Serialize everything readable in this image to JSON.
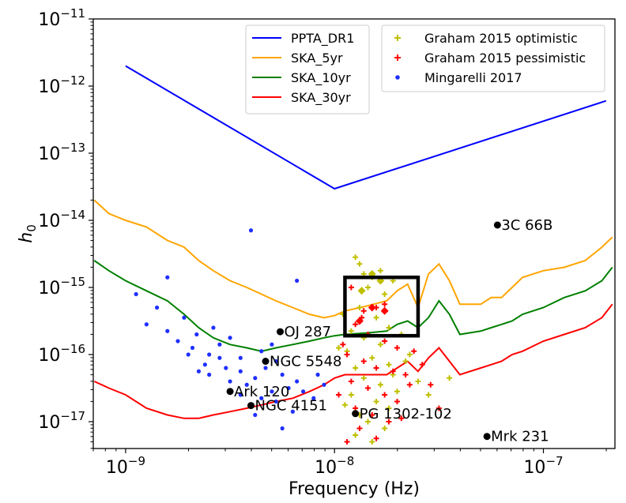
{
  "chart_data": {
    "type": "line",
    "xscale": "log",
    "yscale": "log",
    "xlabel": "Frequency (Hz)",
    "ylabel_main": "h",
    "ylabel_sub": "0",
    "xlim": [
      7e-10,
      2.2e-07
    ],
    "ylim_exp": [
      -17.4,
      -11
    ],
    "x_ticks": [
      {
        "exp": -9,
        "base": "10",
        "sup": "−9"
      },
      {
        "exp": -8,
        "base": "10",
        "sup": "−8"
      },
      {
        "exp": -7,
        "base": "10",
        "sup": "−7"
      }
    ],
    "y_ticks": [
      {
        "exp": -11,
        "base": "10",
        "sup": "−11"
      },
      {
        "exp": -12,
        "base": "10",
        "sup": "−12"
      },
      {
        "exp": -13,
        "base": "10",
        "sup": "−13"
      },
      {
        "exp": -14,
        "base": "10",
        "sup": "−14"
      },
      {
        "exp": -15,
        "base": "10",
        "sup": "−15"
      },
      {
        "exp": -16,
        "base": "10",
        "sup": "−16"
      },
      {
        "exp": -17,
        "base": "10",
        "sup": "−17"
      }
    ],
    "colors": {
      "ppta": "#0000ff",
      "ska5": "#ffa500",
      "ska10": "#008000",
      "ska30": "#ff0000",
      "optimistic": "#bfbf00",
      "pessimistic": "#ff0000",
      "mingarelli": "#1f2fff"
    },
    "series": [
      {
        "name": "PPTA_DR1",
        "color": "#0000ff",
        "logx": [
          -9.0,
          -8.0,
          -6.7
        ],
        "logy": [
          -11.7,
          -13.53,
          -12.22
        ]
      },
      {
        "name": "SKA_5yr",
        "color": "#ffa500",
        "logx": [
          -9.15,
          -9.08,
          -9.0,
          -8.9,
          -8.8,
          -8.72,
          -8.65,
          -8.58,
          -8.5,
          -8.42,
          -8.35,
          -8.28,
          -8.2,
          -8.12,
          -8.05,
          -8.0,
          -7.95,
          -7.85,
          -7.75,
          -7.7,
          -7.65,
          -7.6,
          -7.55,
          -7.5,
          -7.45,
          -7.4,
          -7.3,
          -7.25,
          -7.2,
          -7.15,
          -7.1,
          -7.0,
          -6.9,
          -6.8,
          -6.72,
          -6.67
        ],
        "logy": [
          -13.7,
          -13.9,
          -14.0,
          -14.1,
          -14.3,
          -14.4,
          -14.6,
          -14.75,
          -14.9,
          -15.0,
          -15.1,
          -15.2,
          -15.3,
          -15.4,
          -15.45,
          -15.42,
          -15.35,
          -15.28,
          -15.2,
          -15.05,
          -14.95,
          -15.3,
          -14.8,
          -14.65,
          -14.9,
          -15.25,
          -15.25,
          -15.15,
          -15.15,
          -15.0,
          -14.85,
          -14.75,
          -14.7,
          -14.6,
          -14.4,
          -14.25
        ]
      },
      {
        "name": "SKA_10yr",
        "color": "#008000",
        "logx": [
          -9.15,
          -9.08,
          -9.0,
          -8.9,
          -8.8,
          -8.72,
          -8.65,
          -8.58,
          -8.5,
          -8.42,
          -8.35,
          -8.28,
          -8.2,
          -8.12,
          -8.05,
          -8.0,
          -7.95,
          -7.85,
          -7.75,
          -7.7,
          -7.65,
          -7.6,
          -7.55,
          -7.5,
          -7.45,
          -7.4,
          -7.3,
          -7.25,
          -7.2,
          -7.15,
          -7.1,
          -7.0,
          -6.9,
          -6.8,
          -6.72,
          -6.67
        ],
        "logy": [
          -14.6,
          -14.75,
          -14.9,
          -15.05,
          -15.2,
          -15.4,
          -15.6,
          -15.75,
          -15.85,
          -15.9,
          -15.95,
          -15.9,
          -15.85,
          -15.8,
          -15.75,
          -15.72,
          -15.7,
          -15.68,
          -15.65,
          -15.55,
          -15.5,
          -15.6,
          -15.45,
          -15.2,
          -15.4,
          -15.7,
          -15.65,
          -15.6,
          -15.55,
          -15.5,
          -15.4,
          -15.3,
          -15.15,
          -15.05,
          -14.9,
          -14.7
        ]
      },
      {
        "name": "SKA_30yr",
        "color": "#ff0000",
        "logx": [
          -9.15,
          -9.08,
          -9.0,
          -8.9,
          -8.8,
          -8.72,
          -8.65,
          -8.58,
          -8.5,
          -8.42,
          -8.35,
          -8.28,
          -8.2,
          -8.12,
          -8.05,
          -8.0,
          -7.95,
          -7.85,
          -7.75,
          -7.7,
          -7.65,
          -7.6,
          -7.55,
          -7.5,
          -7.45,
          -7.4,
          -7.3,
          -7.25,
          -7.2,
          -7.15,
          -7.1,
          -7.0,
          -6.9,
          -6.8,
          -6.72,
          -6.67
        ],
        "logy": [
          -16.4,
          -16.5,
          -16.6,
          -16.8,
          -16.9,
          -16.95,
          -16.95,
          -16.9,
          -16.85,
          -16.8,
          -16.75,
          -16.7,
          -16.65,
          -16.55,
          -16.45,
          -16.35,
          -16.3,
          -16.3,
          -16.3,
          -16.2,
          -16.1,
          -16.25,
          -16.05,
          -15.9,
          -16.1,
          -16.3,
          -16.2,
          -16.15,
          -16.1,
          -16.0,
          -15.95,
          -15.8,
          -15.7,
          -15.6,
          -15.45,
          -15.25
        ]
      }
    ],
    "scatter": {
      "graham_optimistic": {
        "name": "Graham 2015 optimistic",
        "marker": "plus",
        "color": "#bfbf00",
        "points": [
          [
            -7.9,
            -14.55
          ],
          [
            -7.86,
            -14.8
          ],
          [
            -7.82,
            -14.85
          ],
          [
            -7.78,
            -14.75
          ],
          [
            -7.84,
            -15.0
          ],
          [
            -7.76,
            -15.1
          ],
          [
            -7.88,
            -15.3
          ],
          [
            -7.8,
            -15.45
          ],
          [
            -7.74,
            -15.6
          ],
          [
            -7.92,
            -15.65
          ],
          [
            -7.86,
            -15.75
          ],
          [
            -7.78,
            -15.85
          ],
          [
            -7.7,
            -15.9
          ],
          [
            -7.94,
            -15.95
          ],
          [
            -7.82,
            -16.05
          ],
          [
            -7.74,
            -16.15
          ],
          [
            -7.66,
            -16.1
          ],
          [
            -7.9,
            -16.2
          ],
          [
            -7.86,
            -16.35
          ],
          [
            -7.78,
            -16.45
          ],
          [
            -7.7,
            -16.55
          ],
          [
            -7.92,
            -16.6
          ],
          [
            -7.8,
            -16.7
          ],
          [
            -7.74,
            -16.8
          ],
          [
            -7.88,
            -16.9
          ],
          [
            -7.84,
            -17.0
          ],
          [
            -7.76,
            -17.1
          ],
          [
            -7.9,
            -17.2
          ],
          [
            -7.82,
            -17.3
          ],
          [
            -7.95,
            -16.75
          ],
          [
            -7.72,
            -16.3
          ],
          [
            -7.68,
            -15.7
          ],
          [
            -7.96,
            -15.4
          ],
          [
            -7.98,
            -15.9
          ],
          [
            -7.64,
            -16.0
          ],
          [
            -7.6,
            -16.4
          ],
          [
            -7.55,
            -16.6
          ],
          [
            -7.45,
            -16.35
          ],
          [
            -7.72,
            -14.9
          ],
          [
            -7.88,
            -14.65
          ]
        ]
      },
      "graham_pessimistic": {
        "name": "Graham 2015 pessimistic",
        "marker": "plus",
        "color": "#ff0000",
        "points": [
          [
            -7.92,
            -15.0
          ],
          [
            -7.86,
            -15.35
          ],
          [
            -7.8,
            -15.3
          ],
          [
            -7.76,
            -15.25
          ],
          [
            -7.9,
            -15.55
          ],
          [
            -7.84,
            -15.7
          ],
          [
            -7.76,
            -15.8
          ],
          [
            -7.7,
            -15.9
          ],
          [
            -7.94,
            -16.0
          ],
          [
            -7.86,
            -16.1
          ],
          [
            -7.8,
            -16.2
          ],
          [
            -7.72,
            -16.25
          ],
          [
            -7.66,
            -16.3
          ],
          [
            -7.92,
            -16.4
          ],
          [
            -7.84,
            -16.5
          ],
          [
            -7.76,
            -16.6
          ],
          [
            -7.7,
            -16.7
          ],
          [
            -7.9,
            -16.8
          ],
          [
            -7.82,
            -16.9
          ],
          [
            -7.74,
            -17.0
          ],
          [
            -7.88,
            -17.1
          ],
          [
            -7.8,
            -17.25
          ],
          [
            -7.94,
            -17.3
          ],
          [
            -7.64,
            -16.45
          ],
          [
            -7.62,
            -15.95
          ],
          [
            -7.96,
            -15.85
          ],
          [
            -7.58,
            -16.15
          ],
          [
            -7.54,
            -16.45
          ],
          [
            -7.5,
            -16.8
          ],
          [
            -7.68,
            -16.95
          ],
          [
            -7.98,
            -16.6
          ],
          [
            -7.87,
            -15.45
          ]
        ]
      },
      "graham_highlight": {
        "yellow_diamonds": [
          [
            -7.82,
            -14.8
          ],
          [
            -7.78,
            -14.9
          ],
          [
            -7.87,
            -15.05
          ]
        ],
        "red_diamonds": [
          [
            -7.82,
            -15.3
          ],
          [
            -7.76,
            -15.35
          ],
          [
            -7.88,
            -15.5
          ]
        ]
      },
      "mingarelli": {
        "name": "Mingarelli 2017",
        "marker": "dot",
        "color": "#1f2fff",
        "points": [
          [
            -8.8,
            -14.85
          ],
          [
            -8.95,
            -15.1
          ],
          [
            -8.85,
            -15.3
          ],
          [
            -8.72,
            -15.45
          ],
          [
            -8.9,
            -15.55
          ],
          [
            -8.8,
            -15.65
          ],
          [
            -8.66,
            -15.7
          ],
          [
            -8.75,
            -15.8
          ],
          [
            -8.68,
            -15.9
          ],
          [
            -8.6,
            -16.0
          ],
          [
            -8.55,
            -16.05
          ],
          [
            -8.62,
            -16.15
          ],
          [
            -8.52,
            -16.2
          ],
          [
            -8.45,
            -16.25
          ],
          [
            -8.6,
            -16.3
          ],
          [
            -8.5,
            -16.4
          ],
          [
            -8.42,
            -16.45
          ],
          [
            -8.38,
            -16.35
          ],
          [
            -8.33,
            -16.2
          ],
          [
            -8.28,
            -16.1
          ],
          [
            -8.25,
            -16.3
          ],
          [
            -8.3,
            -16.55
          ],
          [
            -8.35,
            -16.65
          ],
          [
            -8.4,
            -16.75
          ],
          [
            -8.45,
            -16.6
          ],
          [
            -8.22,
            -16.5
          ],
          [
            -8.18,
            -16.4
          ],
          [
            -8.15,
            -16.55
          ],
          [
            -8.1,
            -16.65
          ],
          [
            -8.08,
            -16.3
          ],
          [
            -8.05,
            -16.45
          ],
          [
            -8.2,
            -16.85
          ],
          [
            -8.25,
            -17.1
          ],
          [
            -8.28,
            -16.7
          ],
          [
            -8.4,
            -14.15
          ],
          [
            -8.18,
            -14.9
          ],
          [
            -8.55,
            -15.85
          ],
          [
            -8.5,
            -15.75
          ],
          [
            -8.35,
            -15.95
          ],
          [
            -8.3,
            -15.85
          ],
          [
            -8.45,
            -16.05
          ],
          [
            -8.7,
            -16.0
          ],
          [
            -8.65,
            -16.25
          ],
          [
            -8.58,
            -15.6
          ],
          [
            -8.38,
            -16.9
          ]
        ]
      }
    },
    "named_sources": [
      {
        "label": "3C 66B",
        "logx": -7.22,
        "logy": -14.07
      },
      {
        "label": "OJ 287",
        "logx": -8.26,
        "logy": -15.66
      },
      {
        "label": "NGC 5548",
        "logx": -8.33,
        "logy": -16.1
      },
      {
        "label": "Ark 120",
        "logx": -8.5,
        "logy": -16.55
      },
      {
        "label": "NGC 4151",
        "logx": -8.4,
        "logy": -16.76
      },
      {
        "label": "PG 1302-102",
        "logx": -7.9,
        "logy": -16.88
      },
      {
        "label": "Mrk 231",
        "logx": -7.27,
        "logy": -17.22
      }
    ],
    "highlight_box": {
      "logx": [
        -7.95,
        -7.6
      ],
      "logy": [
        -15.72,
        -14.85
      ]
    },
    "legend": {
      "position": "top-right",
      "lines": [
        "PPTA_DR1",
        "SKA_5yr",
        "SKA_10yr",
        "SKA_30yr"
      ],
      "scatter": [
        "Graham 2015 optimistic",
        "Graham 2015 pessimistic",
        "Mingarelli 2017"
      ]
    }
  }
}
